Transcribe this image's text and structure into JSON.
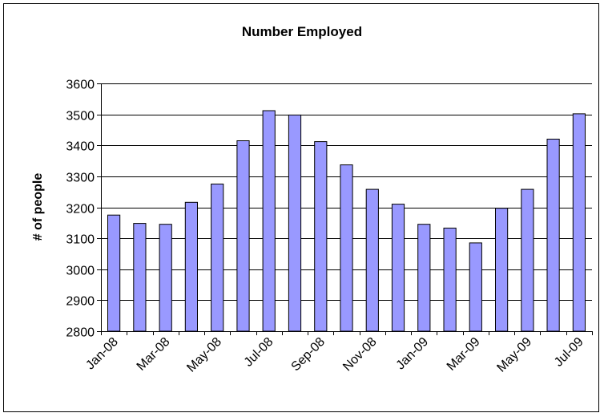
{
  "chart_data": {
    "type": "bar",
    "title": "Number Employed",
    "xlabel": "",
    "ylabel": "# of people",
    "ylim": [
      2800,
      3600
    ],
    "yticks": [
      2800,
      2900,
      3000,
      3100,
      3200,
      3300,
      3400,
      3500,
      3600
    ],
    "grid": true,
    "legend": "none",
    "bar_color": "#9999ff",
    "categories": [
      "Jan-08",
      "Feb-08",
      "Mar-08",
      "Apr-08",
      "May-08",
      "Jun-08",
      "Jul-08",
      "Aug-08",
      "Sep-08",
      "Oct-08",
      "Nov-08",
      "Dec-08",
      "Jan-09",
      "Feb-09",
      "Mar-09",
      "Apr-09",
      "May-09",
      "Jun-09",
      "Jul-09"
    ],
    "tick_labels": [
      "Jan-08",
      "Mar-08",
      "May-08",
      "Jul-08",
      "Sep-08",
      "Nov-08",
      "Jan-09",
      "Mar-09",
      "May-09",
      "Jul-09"
    ],
    "values": [
      3175,
      3148,
      3145,
      3216,
      3275,
      3415,
      3512,
      3498,
      3412,
      3337,
      3258,
      3210,
      3145,
      3133,
      3085,
      3197,
      3258,
      3420,
      3502
    ]
  }
}
